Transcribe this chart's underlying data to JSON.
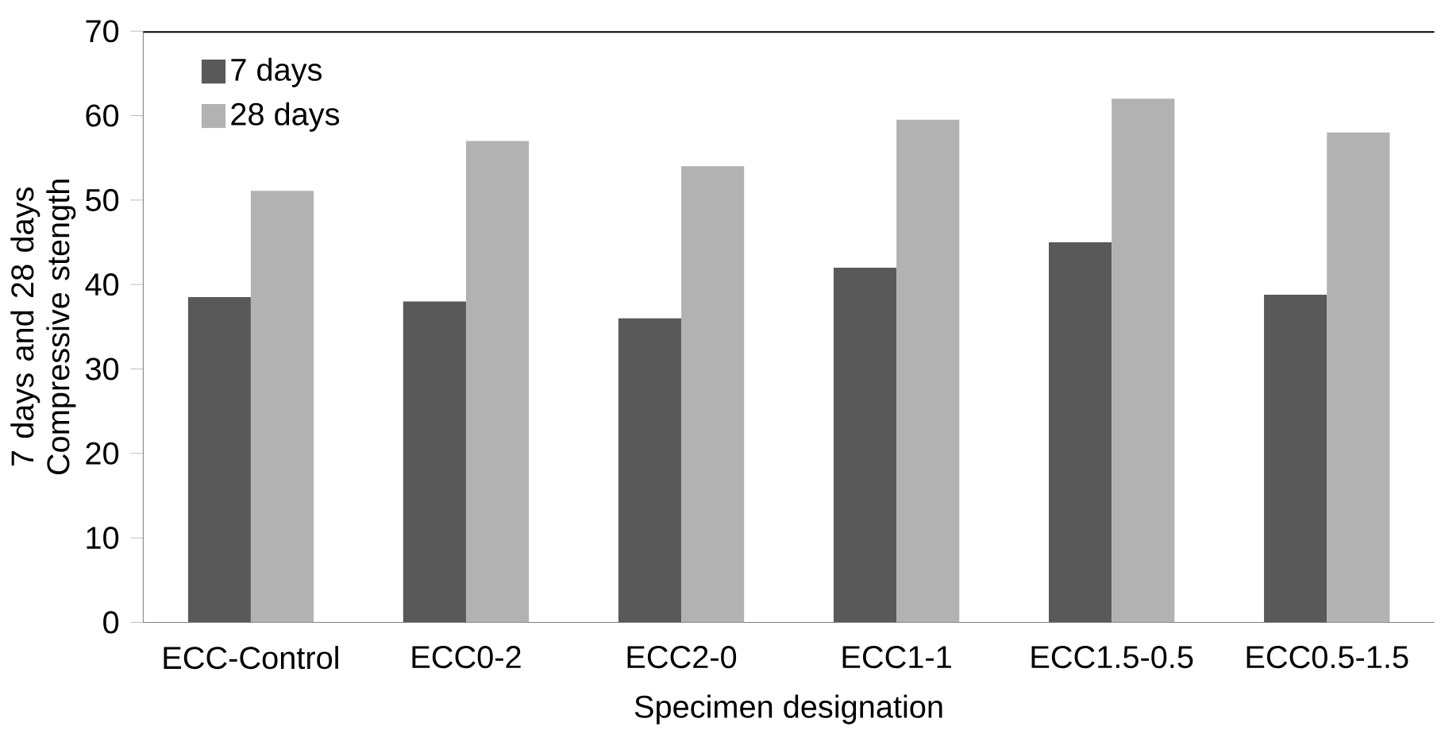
{
  "chart_data": {
    "type": "bar",
    "xlabel": "Specimen designation",
    "ylabel": "7 days and 28 days  Compressive stength",
    "categories": [
      "ECC-Control",
      "ECC0-2",
      "ECC2-0",
      "ECC1-1",
      "ECC1.5-0.5",
      "ECC0.5-1.5"
    ],
    "series": [
      {
        "name": "7 days",
        "color": "#595959",
        "values": [
          38.5,
          38,
          36,
          42,
          45,
          38.8
        ]
      },
      {
        "name": "28 days",
        "color": "#b2b2b2",
        "values": [
          51.1,
          57,
          54,
          59.5,
          62,
          58
        ]
      }
    ],
    "ylim": [
      0,
      70
    ],
    "yticks": [
      0,
      10,
      20,
      30,
      40,
      50,
      60,
      70
    ],
    "grid": false,
    "legend": "top left"
  }
}
